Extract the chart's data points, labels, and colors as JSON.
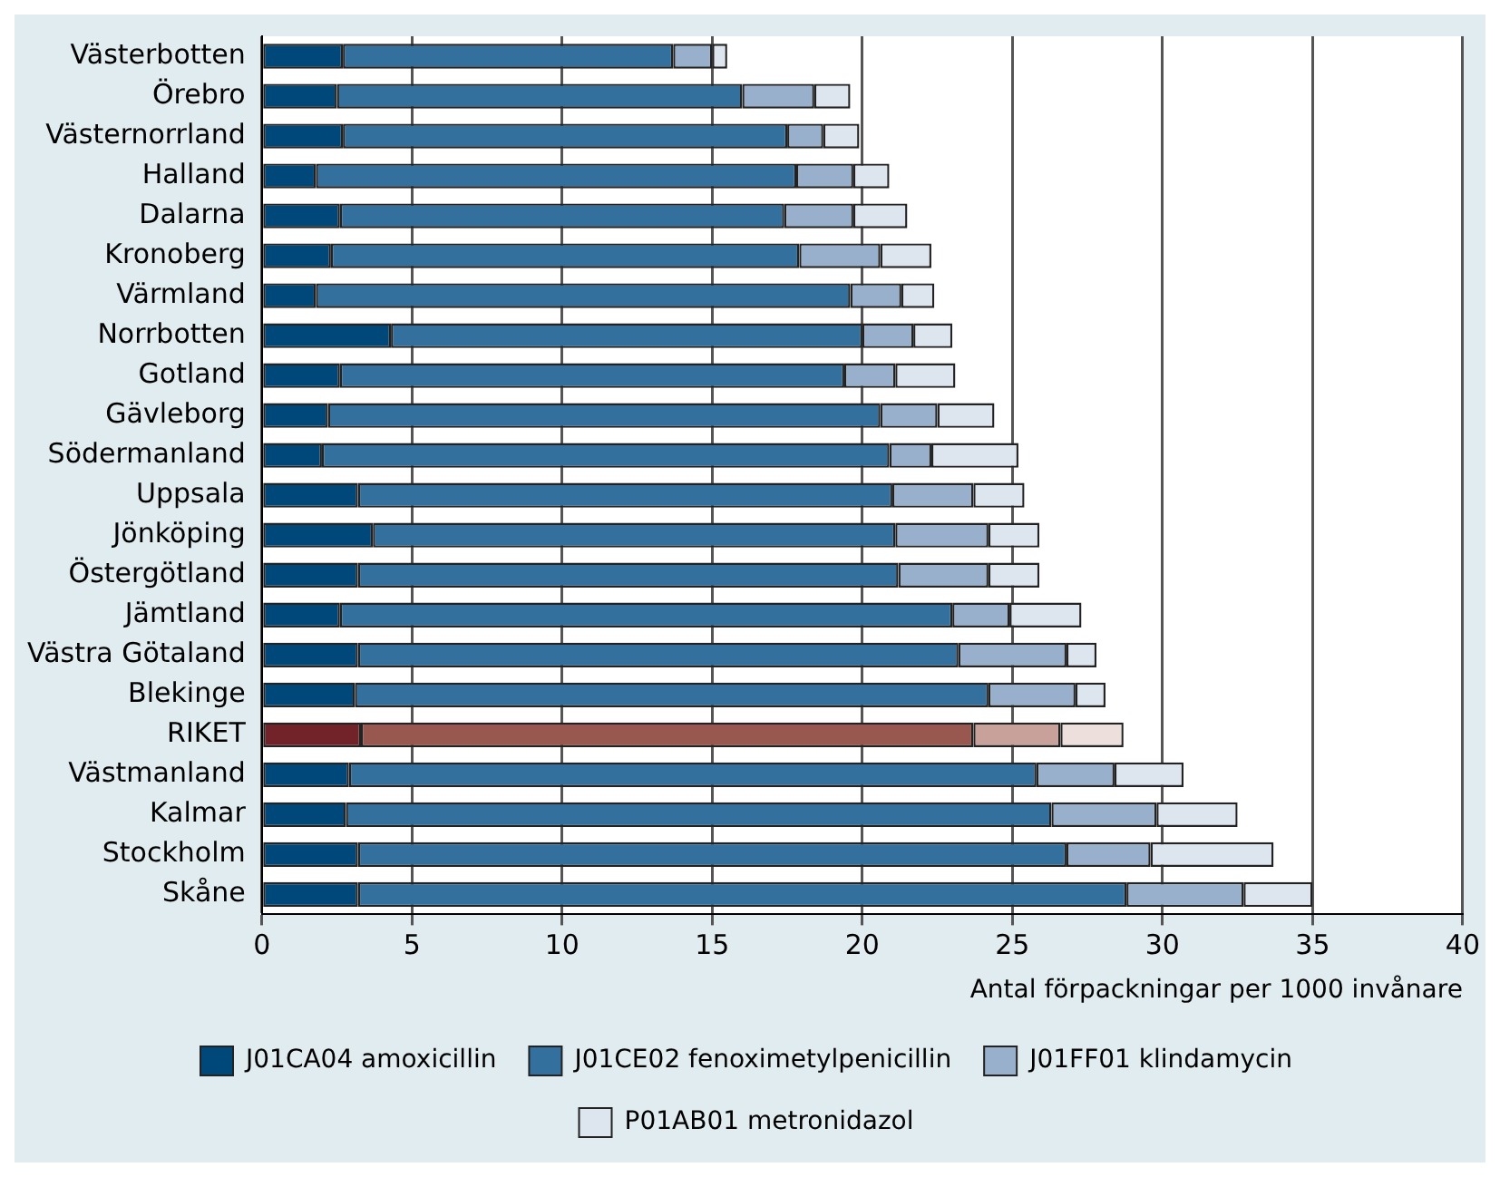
{
  "chart_data": {
    "type": "bar",
    "orientation": "horizontal",
    "stacked": true,
    "xlabel": "Antal förpackningar per 1000 invånare",
    "categories": [
      "Västerbotten",
      "Örebro",
      "Västernorrland",
      "Halland",
      "Dalarna",
      "Kronoberg",
      "Värmland",
      "Norrbotten",
      "Gotland",
      "Gävleborg",
      "Södermanland",
      "Uppsala",
      "Jönköping",
      "Östergötland",
      "Jämtland",
      "Västra Götaland",
      "Blekinge",
      "RIKET",
      "Västmanland",
      "Kalmar",
      "Stockholm",
      "Skåne"
    ],
    "series": [
      {
        "name": "J01CA04 amoxicillin",
        "color": "#00477a",
        "colors": [
          "#00477a",
          "#00477a",
          "#00477a",
          "#00477a",
          "#00477a",
          "#00477a",
          "#00477a",
          "#00477a",
          "#00477a",
          "#00477a",
          "#00477a",
          "#00477a",
          "#00477a",
          "#00477a",
          "#00477a",
          "#00477a",
          "#00477a",
          "#72232a",
          "#00477a",
          "#00477a",
          "#00477a",
          "#00477a"
        ],
        "values": [
          2.7,
          2.5,
          2.7,
          1.8,
          2.6,
          2.3,
          1.8,
          4.3,
          2.6,
          2.2,
          2.0,
          3.2,
          3.7,
          3.2,
          2.6,
          3.2,
          3.1,
          3.3,
          2.9,
          2.8,
          3.2,
          3.2
        ]
      },
      {
        "name": "J01CE02 fenoximetylpenicillin",
        "color": "#33709e",
        "colors": [
          "#33709e",
          "#33709e",
          "#33709e",
          "#33709e",
          "#33709e",
          "#33709e",
          "#33709e",
          "#33709e",
          "#33709e",
          "#33709e",
          "#33709e",
          "#33709e",
          "#33709e",
          "#33709e",
          "#33709e",
          "#33709e",
          "#33709e",
          "#985850",
          "#33709e",
          "#33709e",
          "#33709e",
          "#33709e"
        ],
        "values": [
          11.0,
          13.5,
          14.8,
          16.0,
          14.8,
          15.6,
          17.8,
          15.7,
          16.8,
          18.4,
          18.9,
          17.8,
          17.4,
          18.0,
          20.4,
          20.0,
          21.1,
          20.4,
          22.9,
          23.5,
          23.6,
          25.6
        ]
      },
      {
        "name": "J01FF01 klindamycin",
        "color": "#98b0cc",
        "colors": [
          "#98b0cc",
          "#98b0cc",
          "#98b0cc",
          "#98b0cc",
          "#98b0cc",
          "#98b0cc",
          "#98b0cc",
          "#98b0cc",
          "#98b0cc",
          "#98b0cc",
          "#98b0cc",
          "#98b0cc",
          "#98b0cc",
          "#98b0cc",
          "#98b0cc",
          "#98b0cc",
          "#98b0cc",
          "#c8a29a",
          "#98b0cc",
          "#98b0cc",
          "#98b0cc",
          "#98b0cc"
        ],
        "values": [
          1.3,
          2.4,
          1.2,
          1.9,
          2.3,
          2.7,
          1.7,
          1.7,
          1.7,
          1.9,
          1.4,
          2.7,
          3.1,
          3.0,
          1.9,
          3.6,
          2.9,
          2.9,
          2.6,
          3.5,
          2.8,
          3.9
        ]
      },
      {
        "name": "P01AB01 metronidazol",
        "color": "#dde5ef",
        "colors": [
          "#dde5ef",
          "#dde5ef",
          "#dde5ef",
          "#dde5ef",
          "#dde5ef",
          "#dde5ef",
          "#dde5ef",
          "#dde5ef",
          "#dde5ef",
          "#dde5ef",
          "#dde5ef",
          "#dde5ef",
          "#dde5ef",
          "#dde5ef",
          "#dde5ef",
          "#dde5ef",
          "#dde5ef",
          "#ecdfdc",
          "#dde5ef",
          "#dde5ef",
          "#dde5ef",
          "#dde5ef"
        ],
        "values": [
          0.5,
          1.2,
          1.2,
          1.2,
          1.8,
          1.7,
          1.1,
          1.3,
          2.0,
          1.9,
          2.9,
          1.7,
          1.7,
          1.7,
          2.4,
          1.0,
          1.0,
          2.1,
          2.3,
          2.7,
          4.1,
          2.3
        ]
      }
    ],
    "xlim": [
      0,
      40
    ],
    "xticks": [
      0,
      5,
      10,
      15,
      20,
      25,
      30,
      35,
      40
    ],
    "grid": "x",
    "legend": "bottom"
  }
}
